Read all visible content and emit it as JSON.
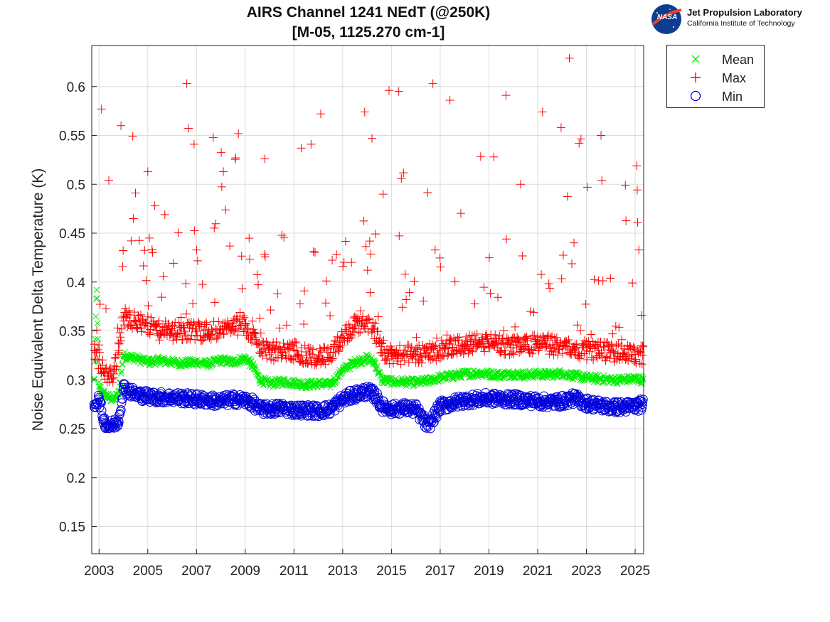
{
  "title_line1": "AIRS Channel 1241 NEdT (@250K)",
  "title_line2": "[M-05, 1125.270 cm-1]",
  "logo": {
    "org": "Jet Propulsion Laboratory",
    "sub": "California Institute of Technology",
    "badge": "NASA"
  },
  "chart_data": {
    "type": "scatter",
    "title": "AIRS Channel 1241 NEdT (@250K) [M-05, 1125.270 cm-1]",
    "xlabel": "",
    "ylabel": "Noise Equivalent Delta Temperature (K)",
    "xlim": [
      2002.7,
      2025.35
    ],
    "ylim": [
      0.122,
      0.642
    ],
    "grid": true,
    "legend_position": "outside-top-right",
    "x_ticks": [
      "2003",
      "2005",
      "2007",
      "2009",
      "2011",
      "2013",
      "2015",
      "2017",
      "2019",
      "2021",
      "2023",
      "2025"
    ],
    "y_ticks": [
      "0.15",
      "0.2",
      "0.25",
      "0.3",
      "0.35",
      "0.4",
      "0.45",
      "0.5",
      "0.55",
      "0.6"
    ],
    "colors": {
      "mean": "#00ee00",
      "max": "#ff0000",
      "min": "#0000dd"
    },
    "series": [
      {
        "name": "Mean",
        "marker": "x",
        "color": "#00ee00",
        "x": [
          2002.8,
          2002.9,
          2003.0,
          2003.2,
          2003.4,
          2003.6,
          2003.8,
          2004.0,
          2004.5,
          2005.0,
          2005.5,
          2006.0,
          2006.5,
          2007.0,
          2007.5,
          2008.0,
          2008.5,
          2009.0,
          2009.3,
          2009.6,
          2010.0,
          2010.5,
          2011.0,
          2011.5,
          2012.0,
          2012.5,
          2013.0,
          2013.5,
          2014.0,
          2014.3,
          2014.6,
          2015.0,
          2015.5,
          2016.0,
          2016.5,
          2017.0,
          2017.5,
          2018.0,
          2018.5,
          2019.0,
          2019.5,
          2020.0,
          2020.5,
          2021.0,
          2021.5,
          2022.0,
          2022.5,
          2023.0,
          2023.5,
          2024.0,
          2024.5,
          2025.0,
          2025.3
        ],
        "y": [
          0.3,
          0.392,
          0.293,
          0.285,
          0.282,
          0.28,
          0.285,
          0.325,
          0.322,
          0.318,
          0.32,
          0.318,
          0.317,
          0.318,
          0.316,
          0.32,
          0.318,
          0.322,
          0.315,
          0.3,
          0.296,
          0.298,
          0.297,
          0.295,
          0.296,
          0.295,
          0.31,
          0.318,
          0.322,
          0.318,
          0.3,
          0.298,
          0.298,
          0.297,
          0.299,
          0.302,
          0.304,
          0.306,
          0.307,
          0.306,
          0.305,
          0.306,
          0.305,
          0.306,
          0.305,
          0.307,
          0.304,
          0.302,
          0.301,
          0.3,
          0.3,
          0.301,
          0.3
        ]
      },
      {
        "name": "Max",
        "marker": "+",
        "color": "#ff0000",
        "x": [
          2002.8,
          2003.0,
          2003.2,
          2003.4,
          2003.6,
          2003.8,
          2004.0,
          2004.5,
          2005.0,
          2005.5,
          2006.0,
          2006.5,
          2007.0,
          2007.5,
          2008.0,
          2008.5,
          2009.0,
          2009.3,
          2009.6,
          2010.0,
          2010.5,
          2011.0,
          2011.5,
          2012.0,
          2012.5,
          2013.0,
          2013.5,
          2014.0,
          2014.3,
          2014.6,
          2015.0,
          2015.5,
          2016.0,
          2016.5,
          2017.0,
          2017.5,
          2018.0,
          2018.5,
          2019.0,
          2019.5,
          2020.0,
          2020.5,
          2021.0,
          2021.5,
          2022.0,
          2022.5,
          2023.0,
          2023.5,
          2024.0,
          2024.5,
          2025.0,
          2025.3,
          2003.1,
          2003.4,
          2003.9,
          2005.0,
          2005.7,
          2006.6,
          2006.9,
          2008.1,
          2008.6,
          2009.8,
          2011.3,
          2011.7,
          2012.1,
          2013.9,
          2014.2,
          2014.9,
          2015.3,
          2016.7,
          2017.4,
          2019.2,
          2019.7,
          2020.3,
          2021.2,
          2022.3,
          2022.7,
          2023.6,
          2024.6,
          2025.1
        ],
        "y": [
          0.33,
          0.32,
          0.308,
          0.304,
          0.306,
          0.33,
          0.365,
          0.36,
          0.355,
          0.35,
          0.35,
          0.348,
          0.35,
          0.35,
          0.352,
          0.355,
          0.356,
          0.345,
          0.335,
          0.33,
          0.328,
          0.33,
          0.325,
          0.325,
          0.322,
          0.345,
          0.355,
          0.358,
          0.352,
          0.328,
          0.324,
          0.326,
          0.326,
          0.328,
          0.33,
          0.333,
          0.336,
          0.338,
          0.337,
          0.336,
          0.335,
          0.336,
          0.336,
          0.335,
          0.334,
          0.333,
          0.33,
          0.33,
          0.328,
          0.327,
          0.326,
          0.325,
          0.577,
          0.504,
          0.56,
          0.513,
          0.469,
          0.603,
          0.541,
          0.513,
          0.527,
          0.526,
          0.537,
          0.541,
          0.572,
          0.574,
          0.547,
          0.596,
          0.595,
          0.603,
          0.586,
          0.528,
          0.591,
          0.5,
          0.574,
          0.629,
          0.542,
          0.55,
          0.499,
          0.461
        ]
      },
      {
        "name": "Min",
        "marker": "o",
        "color": "#0000dd",
        "x": [
          2002.8,
          2003.0,
          2003.2,
          2003.4,
          2003.6,
          2003.8,
          2004.0,
          2004.5,
          2005.0,
          2005.5,
          2006.0,
          2006.5,
          2007.0,
          2007.5,
          2008.0,
          2008.5,
          2009.0,
          2009.3,
          2009.6,
          2010.0,
          2010.5,
          2011.0,
          2011.5,
          2012.0,
          2012.5,
          2013.0,
          2013.5,
          2014.0,
          2014.3,
          2014.6,
          2015.0,
          2015.5,
          2016.0,
          2016.5,
          2017.0,
          2017.5,
          2018.0,
          2018.5,
          2019.0,
          2019.5,
          2020.0,
          2020.5,
          2021.0,
          2021.5,
          2022.0,
          2022.5,
          2023.0,
          2023.5,
          2024.0,
          2024.5,
          2025.0,
          2025.3
        ],
        "y": [
          0.275,
          0.28,
          0.258,
          0.252,
          0.254,
          0.258,
          0.292,
          0.285,
          0.283,
          0.282,
          0.282,
          0.281,
          0.28,
          0.279,
          0.278,
          0.28,
          0.279,
          0.276,
          0.27,
          0.27,
          0.271,
          0.269,
          0.269,
          0.268,
          0.27,
          0.28,
          0.285,
          0.288,
          0.285,
          0.273,
          0.27,
          0.271,
          0.27,
          0.252,
          0.273,
          0.276,
          0.279,
          0.28,
          0.281,
          0.28,
          0.28,
          0.279,
          0.278,
          0.277,
          0.278,
          0.281,
          0.276,
          0.274,
          0.272,
          0.272,
          0.273,
          0.275
        ]
      }
    ]
  }
}
